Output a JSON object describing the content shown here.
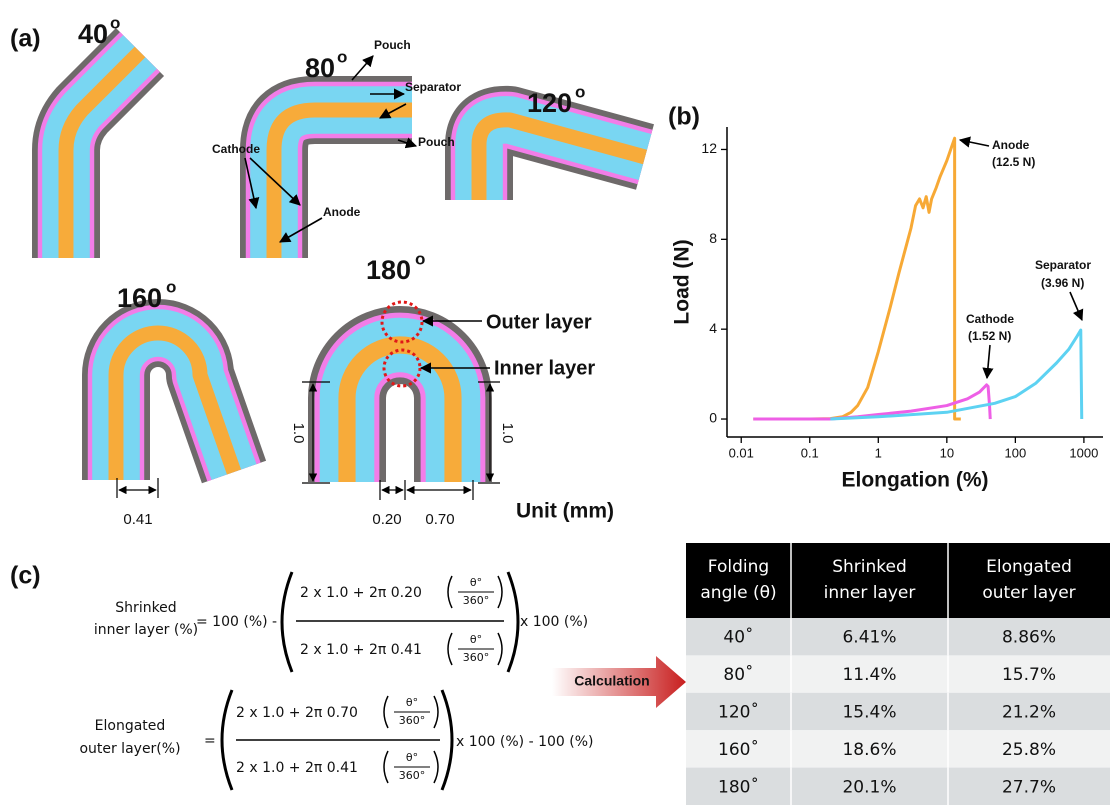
{
  "panel_a": {
    "label": "(a)",
    "angles": [
      {
        "number": "40",
        "sup": "o"
      },
      {
        "number": "80",
        "sup": "o"
      },
      {
        "number": "120",
        "sup": "o"
      },
      {
        "number": "160",
        "sup": "o"
      },
      {
        "number": "180",
        "sup": "o"
      }
    ],
    "annotations": {
      "pouch_top": "Pouch",
      "separator": "Separator",
      "pouch_bottom": "Pouch",
      "cathode": "Cathode",
      "anode": "Anode",
      "outer_layer": "Outer layer",
      "inner_layer": "Inner layer"
    },
    "dimensions": {
      "d160": "0.41",
      "h_left": "1.0",
      "h_right": "1.0",
      "inner": "0.20",
      "outer": "0.70"
    },
    "unit": "Unit (mm)"
  },
  "chart_data": {
    "type": "line",
    "label": "(b)",
    "x_label": "Elongation (%)",
    "y_label": "Load (N)",
    "log_x": true,
    "xlim": [
      0.0062,
      1900
    ],
    "xticks": [
      0.01,
      0.1,
      1,
      10,
      100,
      1000
    ],
    "ylim": [
      -0.8,
      13
    ],
    "yticks": [
      0,
      4,
      8,
      12
    ],
    "series": [
      {
        "name": "Anode",
        "color": "#f7a935",
        "x": [
          0.015,
          0.1,
          0.2,
          0.3,
          0.4,
          0.5,
          0.7,
          1,
          1.5,
          2,
          2.5,
          3,
          3.5,
          4,
          4.5,
          5,
          5.5,
          6,
          7,
          8,
          10,
          12,
          13,
          13,
          13.5,
          16
        ],
        "values": [
          0,
          0,
          0.02,
          0.1,
          0.3,
          0.6,
          1.4,
          3,
          5,
          6.5,
          7.6,
          8.5,
          9.5,
          9.8,
          9.4,
          9.9,
          9.2,
          9.8,
          10.3,
          10.8,
          11.5,
          12.2,
          12.5,
          0,
          0,
          0
        ]
      },
      {
        "name": "Cathode",
        "color": "#ee5fe6",
        "x": [
          0.015,
          0.2,
          0.5,
          1,
          3,
          10,
          20,
          30,
          38,
          40,
          42,
          43
        ],
        "values": [
          0,
          0,
          0.1,
          0.2,
          0.35,
          0.6,
          0.9,
          1.2,
          1.52,
          1.45,
          0.6,
          0
        ]
      },
      {
        "name": "Separator",
        "color": "#5dd2f2",
        "x": [
          0.2,
          1,
          10,
          50,
          100,
          200,
          400,
          600,
          800,
          900,
          930
        ],
        "values": [
          0,
          0.1,
          0.3,
          0.7,
          1.0,
          1.6,
          2.5,
          3.1,
          3.7,
          3.96,
          0
        ]
      }
    ],
    "annotations": [
      [
        "Anode",
        "(12.5 N)"
      ],
      [
        "Cathode",
        "(1.52 N)"
      ],
      [
        "Separator",
        "(3.96 N)"
      ]
    ]
  },
  "panel_c": {
    "label": "(c)",
    "formula_inner": {
      "label": [
        "Shrinked",
        "inner layer (%)"
      ],
      "lead": "= 100 (%) -",
      "numerator": "2 x 1.0 + 2π 0.20",
      "numerator_frac": [
        "θ°",
        "360°"
      ],
      "denominator": "2 x 1.0 + 2π 0.41",
      "denominator_frac": [
        "θ°",
        "360°"
      ],
      "tail": "x 100 (%)"
    },
    "formula_outer": {
      "label": [
        "Elongated",
        "outer layer(%)"
      ],
      "lead": "=",
      "numerator": "2 x 1.0 + 2π 0.70",
      "numerator_frac": [
        "θ°",
        "360°"
      ],
      "denominator": "2 x 1.0 + 2π 0.41",
      "denominator_frac": [
        "θ°",
        "360°"
      ],
      "tail": "x 100 (%) - 100 (%)"
    },
    "arrow_label": "Calculation",
    "table": {
      "header": [
        [
          "Folding",
          "angle (θ)"
        ],
        [
          "Shrinked",
          "inner layer"
        ],
        [
          "Elongated",
          "outer layer"
        ]
      ],
      "rows": [
        [
          "40˚",
          "6.41%",
          "8.86%"
        ],
        [
          "80˚",
          "11.4%",
          "15.7%"
        ],
        [
          "120˚",
          "15.4%",
          "21.2%"
        ],
        [
          "160˚",
          "18.6%",
          "25.8%"
        ],
        [
          "180˚",
          "20.1%",
          "27.7%"
        ]
      ]
    }
  }
}
